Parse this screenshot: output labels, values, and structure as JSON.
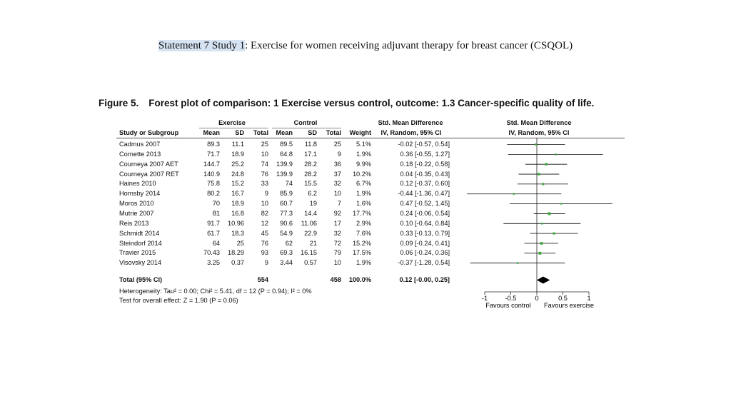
{
  "slide": {
    "title_highlight": "Statement 7 Study 1",
    "title_rest": ": Exercise for women receiving adjuvant therapy for breast cancer (CSQOL)"
  },
  "figure": {
    "label": "Figure 5.",
    "caption": "Forest plot of comparison: 1 Exercise versus control, outcome: 1.3 Cancer-specific quality of life."
  },
  "chart_data": {
    "type": "forest",
    "group_headers": {
      "exercise": "Exercise",
      "control": "Control",
      "smd": "Std. Mean Difference",
      "smd_plot": "Std. Mean Difference"
    },
    "columns": {
      "study": "Study or Subgroup",
      "mean": "Mean",
      "sd": "SD",
      "total": "Total",
      "weight": "Weight",
      "method": "IV, Random, 95% CI",
      "plot_method": "IV, Random, 95% CI"
    },
    "studies": [
      {
        "name": "Cadmus 2007",
        "ex_mean": "89.3",
        "ex_sd": "11.1",
        "ex_n": "25",
        "ct_mean": "89.5",
        "ct_sd": "11.8",
        "ct_n": "25",
        "weight": "5.1%",
        "ci_text": "-0.02 [-0.57, 0.54]",
        "est": -0.02,
        "lo": -0.57,
        "hi": 0.54
      },
      {
        "name": "Cornette 2013",
        "ex_mean": "71.7",
        "ex_sd": "18.9",
        "ex_n": "10",
        "ct_mean": "64.8",
        "ct_sd": "17.1",
        "ct_n": "9",
        "weight": "1.9%",
        "ci_text": "0.36 [-0.55, 1.27]",
        "est": 0.36,
        "lo": -0.55,
        "hi": 1.27
      },
      {
        "name": "Courneya 2007 AET",
        "ex_mean": "144.7",
        "ex_sd": "25.2",
        "ex_n": "74",
        "ct_mean": "139.9",
        "ct_sd": "28.2",
        "ct_n": "36",
        "weight": "9.9%",
        "ci_text": "0.18 [-0.22, 0.58]",
        "est": 0.18,
        "lo": -0.22,
        "hi": 0.58
      },
      {
        "name": "Courneya 2007 RET",
        "ex_mean": "140.9",
        "ex_sd": "24.8",
        "ex_n": "76",
        "ct_mean": "139.9",
        "ct_sd": "28.2",
        "ct_n": "37",
        "weight": "10.2%",
        "ci_text": "0.04 [-0.35, 0.43]",
        "est": 0.04,
        "lo": -0.35,
        "hi": 0.43
      },
      {
        "name": "Haines 2010",
        "ex_mean": "75.8",
        "ex_sd": "15.2",
        "ex_n": "33",
        "ct_mean": "74",
        "ct_sd": "15.5",
        "ct_n": "32",
        "weight": "6.7%",
        "ci_text": "0.12 [-0.37, 0.60]",
        "est": 0.12,
        "lo": -0.37,
        "hi": 0.6
      },
      {
        "name": "Hornsby 2014",
        "ex_mean": "80.2",
        "ex_sd": "16.7",
        "ex_n": "9",
        "ct_mean": "85.9",
        "ct_sd": "6.2",
        "ct_n": "10",
        "weight": "1.9%",
        "ci_text": "-0.44 [-1.36, 0.47]",
        "est": -0.44,
        "lo": -1.36,
        "hi": 0.47
      },
      {
        "name": "Moros 2010",
        "ex_mean": "70",
        "ex_sd": "18.9",
        "ex_n": "10",
        "ct_mean": "60.7",
        "ct_sd": "19",
        "ct_n": "7",
        "weight": "1.6%",
        "ci_text": "0.47 [-0.52, 1.45]",
        "est": 0.47,
        "lo": -0.52,
        "hi": 1.45
      },
      {
        "name": "Mutrie 2007",
        "ex_mean": "81",
        "ex_sd": "16.8",
        "ex_n": "82",
        "ct_mean": "77.3",
        "ct_sd": "14.4",
        "ct_n": "92",
        "weight": "17.7%",
        "ci_text": "0.24 [-0.06, 0.54]",
        "est": 0.24,
        "lo": -0.06,
        "hi": 0.54
      },
      {
        "name": "Reis 2013",
        "ex_mean": "91.7",
        "ex_sd": "10.96",
        "ex_n": "12",
        "ct_mean": "90.6",
        "ct_sd": "11.06",
        "ct_n": "17",
        "weight": "2.9%",
        "ci_text": "0.10 [-0.64, 0.84]",
        "est": 0.1,
        "lo": -0.64,
        "hi": 0.84
      },
      {
        "name": "Schmidt 2014",
        "ex_mean": "61.7",
        "ex_sd": "18.3",
        "ex_n": "45",
        "ct_mean": "54.9",
        "ct_sd": "22.9",
        "ct_n": "32",
        "weight": "7.6%",
        "ci_text": "0.33 [-0.13, 0.79]",
        "est": 0.33,
        "lo": -0.13,
        "hi": 0.79
      },
      {
        "name": "Steindorf 2014",
        "ex_mean": "64",
        "ex_sd": "25",
        "ex_n": "76",
        "ct_mean": "62",
        "ct_sd": "21",
        "ct_n": "72",
        "weight": "15.2%",
        "ci_text": "0.09 [-0.24, 0.41]",
        "est": 0.09,
        "lo": -0.24,
        "hi": 0.41
      },
      {
        "name": "Travier 2015",
        "ex_mean": "70.43",
        "ex_sd": "18.29",
        "ex_n": "93",
        "ct_mean": "69.3",
        "ct_sd": "16.15",
        "ct_n": "79",
        "weight": "17.5%",
        "ci_text": "0.06 [-0.24, 0.36]",
        "est": 0.06,
        "lo": -0.24,
        "hi": 0.36
      },
      {
        "name": "Visovsky 2014",
        "ex_mean": "3.25",
        "ex_sd": "0.37",
        "ex_n": "9",
        "ct_mean": "3.44",
        "ct_sd": "0.57",
        "ct_n": "10",
        "weight": "1.9%",
        "ci_text": "-0.37 [-1.28, 0.54]",
        "est": -0.37,
        "lo": -1.28,
        "hi": 0.54
      }
    ],
    "total": {
      "name": "Total (95% CI)",
      "ex_n": "554",
      "ct_n": "458",
      "weight": "100.0%",
      "ci_text": "0.12 [-0.00, 0.25]",
      "est": 0.12,
      "lo": 0.0,
      "hi": 0.25
    },
    "heterogeneity": "Heterogeneity: Tau² = 0.00; Chi² = 5.41, df = 12 (P = 0.94); I² = 0%",
    "overall_effect": "Test for overall effect: Z = 1.90 (P = 0.06)",
    "axis": {
      "range": [
        -1,
        1
      ],
      "ticks": [
        -1,
        -0.5,
        0,
        0.5,
        1
      ],
      "tick_labels": [
        "-1",
        "-0.5",
        "0",
        "0.5",
        "1"
      ]
    },
    "favours_left": "Favours control",
    "favours_right": "Favours exercise",
    "colors": {
      "point": "#3da83d",
      "line": "#111111",
      "diamond": "#000000"
    }
  }
}
